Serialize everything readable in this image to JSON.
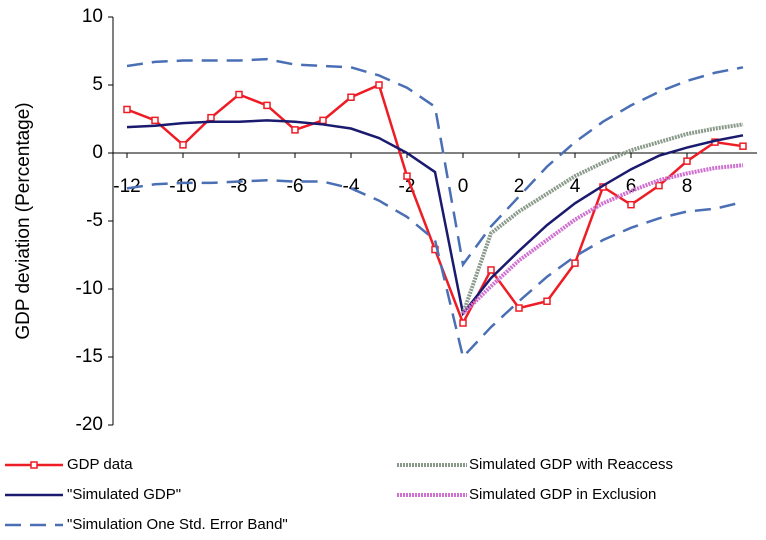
{
  "chart_data": {
    "type": "line",
    "ylabel": "GDP deviation (Percentage)",
    "x": [
      -12,
      -11,
      -10,
      -9,
      -8,
      -7,
      -6,
      -5,
      -4,
      -3,
      -2,
      -1,
      0,
      1,
      2,
      3,
      4,
      5,
      6,
      7,
      8,
      9,
      10
    ],
    "xlim": [
      -12.5,
      10.5
    ],
    "xticks": [
      -12,
      -10,
      -8,
      -6,
      -4,
      -2,
      0,
      2,
      4,
      6,
      8
    ],
    "ylim": [
      -20,
      10
    ],
    "yticks": [
      -20,
      -15,
      -10,
      -5,
      0,
      5,
      10
    ],
    "series": [
      {
        "name": "GDP data",
        "color": "#ee1c25",
        "line_style": "solid",
        "markers": true,
        "values": [
          3.2,
          2.4,
          0.6,
          2.6,
          4.3,
          3.5,
          1.7,
          2.4,
          4.1,
          5.0,
          -1.7,
          -7.1,
          -12.5,
          -8.6,
          -11.4,
          -10.9,
          -8.1,
          -2.5,
          -3.8,
          -2.4,
          -0.6,
          0.8,
          0.5
        ]
      },
      {
        "name": "\"Simulated GDP\"",
        "color": "#1a1a6e",
        "line_style": "solid",
        "values": [
          1.9,
          2.0,
          2.2,
          2.3,
          2.3,
          2.4,
          2.3,
          2.1,
          1.8,
          1.1,
          0.0,
          -1.4,
          -11.8,
          -9.2,
          -7.2,
          -5.3,
          -3.7,
          -2.4,
          -1.2,
          -0.2,
          0.4,
          0.9,
          1.3
        ]
      },
      {
        "name": "Simulated GDP with Reaccess",
        "color": "#8a9a8a",
        "line_style": "textured",
        "values": [
          null,
          null,
          null,
          null,
          null,
          null,
          null,
          null,
          null,
          null,
          null,
          null,
          -11.8,
          -5.9,
          -4.3,
          -3.0,
          -1.7,
          -0.7,
          0.2,
          0.8,
          1.4,
          1.8,
          2.1
        ]
      },
      {
        "name": "Simulated GDP in Exclusion",
        "color": "#d070d0",
        "line_style": "textured",
        "values": [
          null,
          null,
          null,
          null,
          null,
          null,
          null,
          null,
          null,
          null,
          null,
          null,
          -11.8,
          -9.8,
          -7.9,
          -6.4,
          -4.9,
          -3.7,
          -2.8,
          -2.0,
          -1.5,
          -1.1,
          -0.9
        ]
      },
      {
        "name": "\"Simulation One Std. Error Band\"",
        "color": "#4a6fb5",
        "line_style": "dashed",
        "values": [
          6.4,
          6.7,
          6.8,
          6.8,
          6.8,
          6.9,
          6.5,
          6.4,
          6.3,
          5.7,
          4.8,
          3.4,
          -8.2,
          -5.4,
          -3.2,
          -1.0,
          0.8,
          2.3,
          3.5,
          4.5,
          5.3,
          5.9,
          6.3
        ]
      },
      {
        "color": "#4a6fb5",
        "line_style": "dashed",
        "values": [
          -2.6,
          -2.3,
          -2.2,
          -2.2,
          -2.1,
          -2.0,
          -2.1,
          -2.1,
          -2.6,
          -3.5,
          -4.7,
          -6.4,
          -15.0,
          -12.8,
          -10.9,
          -9.1,
          -7.6,
          -6.4,
          -5.5,
          -4.8,
          -4.3,
          -4.1,
          -3.6
        ]
      }
    ]
  }
}
